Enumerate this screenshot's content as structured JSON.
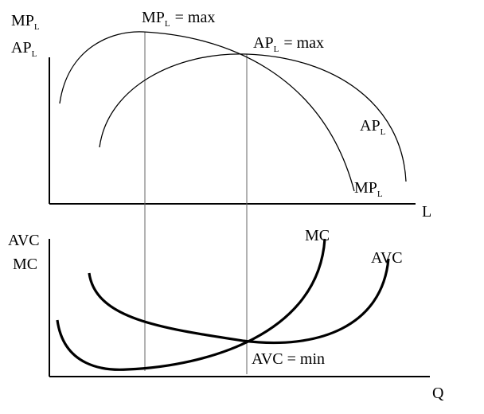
{
  "top_panel": {
    "y_axis_labels": [
      {
        "main": "MP",
        "sub": "L"
      },
      {
        "main": "AP",
        "sub": "L"
      }
    ],
    "x_axis_label": "L",
    "annotations": [
      {
        "main": "MP",
        "sub": "L",
        "rest": "= max"
      },
      {
        "main": "AP",
        "sub": "L",
        "rest": "= max"
      }
    ],
    "curve_labels": [
      {
        "main": "AP",
        "sub": "L"
      },
      {
        "main": "MP",
        "sub": "L"
      }
    ]
  },
  "bottom_panel": {
    "y_axis_labels": [
      "AVC",
      "MC"
    ],
    "x_axis_label": "Q",
    "curve_labels": [
      "MC",
      "AVC"
    ],
    "annotation": "AVC = min"
  }
}
